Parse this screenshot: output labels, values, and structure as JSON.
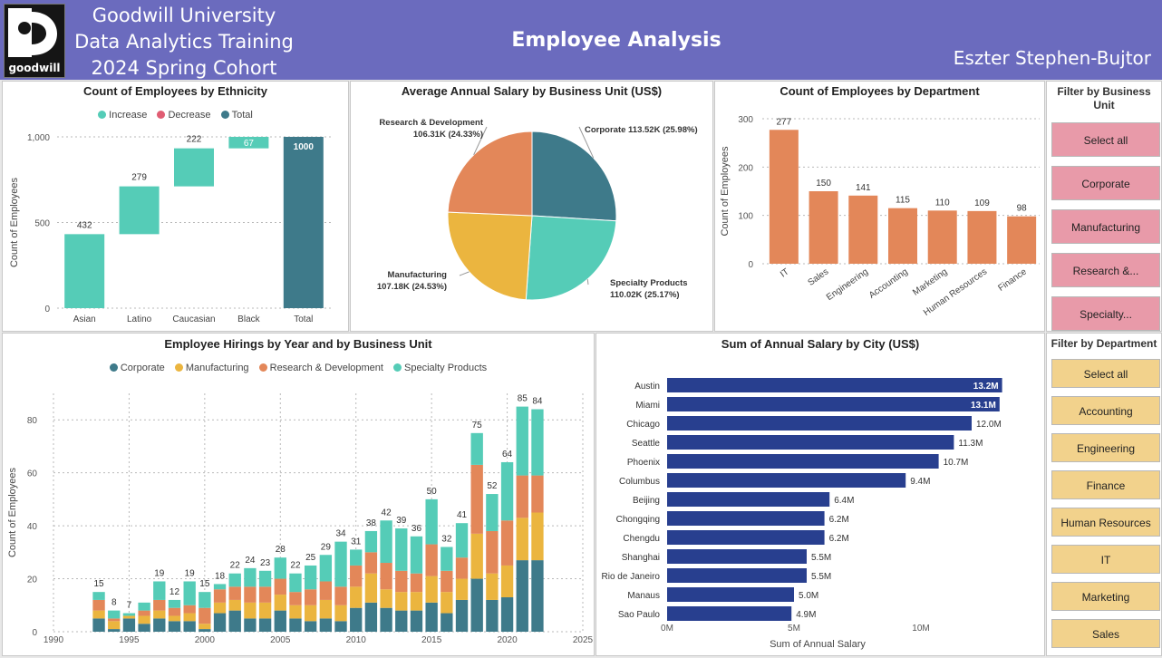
{
  "header": {
    "org_lines": [
      "Goodwill University",
      "Data Analytics Training",
      "2024 Spring Cohort"
    ],
    "logo_text": "goodwill",
    "logo_glyph": "g",
    "title": "Employee Analysis",
    "author": "Eszter Stephen-Bujtor",
    "bg_color": "#6b6bbe"
  },
  "filters": {
    "business_unit": {
      "title": "Filter by Business Unit",
      "options": [
        "Select all",
        "Corporate",
        "Manufacturing",
        "Research &...",
        "Specialty..."
      ]
    },
    "department": {
      "title": "Filter by Department",
      "options": [
        "Select all",
        "Accounting",
        "Engineering",
        "Finance",
        "Human Resources",
        "IT",
        "Marketing",
        "Sales"
      ]
    }
  },
  "chart_data": [
    {
      "id": "ethnicity",
      "type": "waterfall",
      "title": "Count of Employees by Ethnicity",
      "legend": [
        "Increase",
        "Decrease",
        "Total"
      ],
      "colors": {
        "increase": "#55ccb7",
        "decrease": "#e05d73",
        "total": "#3e7a8a"
      },
      "categories": [
        "Asian",
        "Latino",
        "Caucasian",
        "Black",
        "Total"
      ],
      "values": [
        432,
        279,
        222,
        67,
        1000
      ],
      "value_labels": [
        "432",
        "279",
        "222",
        "67",
        "1000"
      ],
      "ylabel": "Count of Employees",
      "yticks": [
        0,
        500,
        1000
      ],
      "ytick_labels": [
        "0",
        "500",
        "1,000"
      ],
      "ylim": [
        0,
        1000
      ]
    },
    {
      "id": "salary_pie",
      "type": "pie",
      "title": "Average Annual Salary by Business Unit (US$)",
      "slices": [
        {
          "name": "Corporate",
          "value": 113.52,
          "label": "Corporate 113.52K (25.98%)",
          "color": "#3e7a8a"
        },
        {
          "name": "Specialty Products",
          "value": 110.02,
          "label_line1": "Specialty Products",
          "label_line2": "110.02K (25.17%)",
          "color": "#55ccb7"
        },
        {
          "name": "Manufacturing",
          "value": 107.18,
          "label_line1": "Manufacturing",
          "label_line2": "107.18K (24.53%)",
          "color": "#ebb53f"
        },
        {
          "name": "Research & Development",
          "value": 106.31,
          "label_line1": "Research & Development",
          "label_line2": "106.31K (24.33%)",
          "color": "#e38759"
        }
      ]
    },
    {
      "id": "department",
      "type": "bar",
      "title": "Count of Employees by Department",
      "categories": [
        "IT",
        "Sales",
        "Engineering",
        "Accounting",
        "Marketing",
        "Human Resources",
        "Finance"
      ],
      "values": [
        277,
        150,
        141,
        115,
        110,
        109,
        98
      ],
      "ylabel": "Count of Employees",
      "yticks": [
        0,
        100,
        200,
        300
      ],
      "ylim": [
        0,
        300
      ],
      "color": "#e38759"
    },
    {
      "id": "hirings",
      "type": "bar",
      "stacked": true,
      "title": "Employee Hirings by Year and by Business Unit",
      "ylabel": "Count of Employees",
      "xlim": [
        1990,
        2025
      ],
      "xticks": [
        1990,
        1995,
        2000,
        2005,
        2010,
        2015,
        2020,
        2025
      ],
      "yticks": [
        0,
        20,
        40,
        60,
        80
      ],
      "ylim": [
        0,
        90
      ],
      "x": [
        1993,
        1994,
        1995,
        1996,
        1997,
        1998,
        1999,
        2000,
        2001,
        2002,
        2003,
        2004,
        2005,
        2006,
        2007,
        2008,
        2009,
        2010,
        2011,
        2012,
        2013,
        2014,
        2015,
        2016,
        2017,
        2018,
        2019,
        2020,
        2021,
        2022
      ],
      "totals": [
        15,
        8,
        7,
        11,
        19,
        12,
        19,
        15,
        18,
        22,
        24,
        23,
        28,
        22,
        25,
        29,
        34,
        31,
        38,
        42,
        39,
        36,
        50,
        32,
        41,
        75,
        52,
        64,
        85,
        84
      ],
      "total_labels": [
        "15",
        "8",
        "7",
        "",
        "19",
        "12",
        "19",
        "15",
        "18",
        "22",
        "24",
        "23",
        "28",
        "22",
        "25",
        "29",
        "34",
        "31",
        "38",
        "42",
        "39",
        "36",
        "50",
        "32",
        "41",
        "75",
        "52",
        "64",
        "85",
        "84"
      ],
      "series": [
        {
          "name": "Corporate",
          "color": "#3e7a8a",
          "values": [
            5,
            1,
            5,
            3,
            5,
            4,
            4,
            1,
            7,
            8,
            5,
            5,
            8,
            5,
            4,
            5,
            4,
            9,
            11,
            9,
            8,
            8,
            11,
            7,
            12,
            20,
            12,
            13,
            27,
            27
          ]
        },
        {
          "name": "Manufacturing",
          "color": "#ebb53f",
          "values": [
            3,
            3,
            1,
            3,
            3,
            2,
            3,
            2,
            4,
            4,
            6,
            6,
            6,
            5,
            6,
            7,
            6,
            8,
            11,
            7,
            7,
            7,
            10,
            8,
            8,
            17,
            10,
            12,
            16,
            18
          ]
        },
        {
          "name": "Research & Development",
          "color": "#e38759",
          "values": [
            4,
            1,
            0,
            2,
            4,
            3,
            3,
            6,
            5,
            5,
            6,
            6,
            6,
            5,
            6,
            7,
            7,
            8,
            8,
            10,
            8,
            7,
            12,
            8,
            8,
            26,
            16,
            17,
            16,
            14
          ]
        },
        {
          "name": "Specialty Products",
          "color": "#55ccb7",
          "values": [
            3,
            3,
            1,
            3,
            7,
            3,
            9,
            6,
            2,
            5,
            7,
            6,
            8,
            7,
            9,
            10,
            17,
            6,
            8,
            16,
            16,
            14,
            17,
            9,
            13,
            12,
            14,
            22,
            26,
            25
          ]
        }
      ]
    },
    {
      "id": "city_salary",
      "type": "bar",
      "orientation": "horizontal",
      "title": "Sum of Annual Salary by City (US$)",
      "categories": [
        "Austin",
        "Miami",
        "Chicago",
        "Seattle",
        "Phoenix",
        "Columbus",
        "Beijing",
        "Chongqing",
        "Chengdu",
        "Shanghai",
        "Rio de Janeiro",
        "Manaus",
        "Sao Paulo"
      ],
      "values": [
        13.2,
        13.1,
        12.0,
        11.3,
        10.7,
        9.4,
        6.4,
        6.2,
        6.2,
        5.5,
        5.5,
        5.0,
        4.9
      ],
      "value_labels": [
        "13.2M",
        "13.1M",
        "12.0M",
        "11.3M",
        "10.7M",
        "9.4M",
        "6.4M",
        "6.2M",
        "6.2M",
        "5.5M",
        "5.5M",
        "5.0M",
        "4.9M"
      ],
      "xlabel": "Sum of Annual Salary",
      "xticks": [
        0,
        5,
        10
      ],
      "xtick_labels": [
        "0M",
        "5M",
        "10M"
      ],
      "xlim": [
        0,
        14
      ],
      "color": "#283f8f"
    }
  ]
}
